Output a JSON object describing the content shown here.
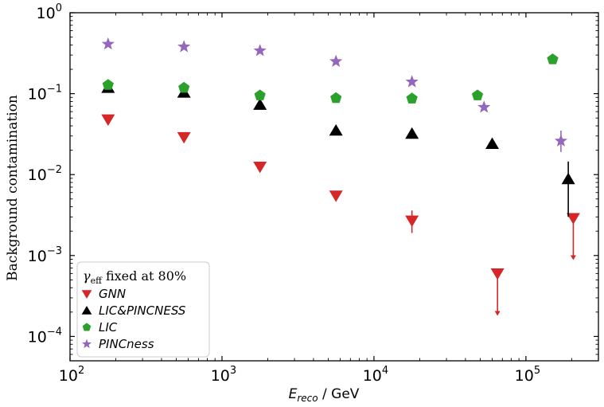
{
  "chart_data": {
    "type": "scatter",
    "title": "",
    "xlabel": {
      "base": "E",
      "subscript": "reco",
      "unit": " / GeV"
    },
    "ylabel": "Background contamination",
    "xscale": "log",
    "yscale": "log",
    "xlim": [
      100,
      300000
    ],
    "ylim": [
      5e-05,
      1
    ],
    "x_ticks": [
      {
        "value": 100,
        "base": "10",
        "exp": "2"
      },
      {
        "value": 1000,
        "base": "10",
        "exp": "3"
      },
      {
        "value": 10000,
        "base": "10",
        "exp": "4"
      },
      {
        "value": 100000,
        "base": "10",
        "exp": "5"
      }
    ],
    "y_ticks": [
      {
        "value": 1,
        "base": "10",
        "exp": "0"
      },
      {
        "value": 0.1,
        "base": "10",
        "exp": "−1"
      },
      {
        "value": 0.01,
        "base": "10",
        "exp": "−2"
      },
      {
        "value": 0.001,
        "base": "10",
        "exp": "−3"
      },
      {
        "value": 0.0001,
        "base": "10",
        "exp": "−4"
      }
    ],
    "legend": {
      "position": "bottom-left",
      "title": {
        "symbol": "γ",
        "subscript": "eff",
        "text": " fixed at 80%"
      }
    },
    "series": [
      {
        "name": "GNN",
        "marker": "triangle-down",
        "color": "#d62728",
        "points": [
          {
            "x": 178,
            "y": 0.048
          },
          {
            "x": 562,
            "y": 0.029
          },
          {
            "x": 1778,
            "y": 0.0125
          },
          {
            "x": 5623,
            "y": 0.0055
          },
          {
            "x": 17783,
            "y": 0.0027,
            "yerr": [
              0.0019,
              0.0036
            ]
          },
          {
            "x": 65000,
            "y": 0.0006,
            "upper_limit": true,
            "arrow_to": 0.00018
          },
          {
            "x": 205000,
            "y": 0.0029,
            "upper_limit": true,
            "arrow_to": 0.00088
          }
        ]
      },
      {
        "name": "LIC&PINCNESS",
        "marker": "triangle-up",
        "color": "#000000",
        "points": [
          {
            "x": 178,
            "y": 0.118
          },
          {
            "x": 562,
            "y": 0.103
          },
          {
            "x": 1778,
            "y": 0.073
          },
          {
            "x": 5623,
            "y": 0.035
          },
          {
            "x": 17783,
            "y": 0.032
          },
          {
            "x": 60000,
            "y": 0.024
          },
          {
            "x": 190000,
            "y": 0.0088,
            "yerr": [
              0.003,
              0.0145
            ]
          }
        ]
      },
      {
        "name": "LIC",
        "marker": "pentagon",
        "color": "#2ca02c",
        "points": [
          {
            "x": 178,
            "y": 0.128
          },
          {
            "x": 562,
            "y": 0.118
          },
          {
            "x": 1778,
            "y": 0.095
          },
          {
            "x": 5623,
            "y": 0.088
          },
          {
            "x": 17783,
            "y": 0.087
          },
          {
            "x": 48000,
            "y": 0.095
          },
          {
            "x": 150000,
            "y": 0.265
          }
        ]
      },
      {
        "name": "PINCness",
        "marker": "star",
        "color": "#9467bd",
        "points": [
          {
            "x": 178,
            "y": 0.41
          },
          {
            "x": 562,
            "y": 0.38
          },
          {
            "x": 1778,
            "y": 0.34
          },
          {
            "x": 5623,
            "y": 0.25
          },
          {
            "x": 17783,
            "y": 0.14
          },
          {
            "x": 53000,
            "y": 0.068
          },
          {
            "x": 170000,
            "y": 0.026,
            "yerr": [
              0.019,
              0.035
            ]
          }
        ]
      }
    ]
  }
}
